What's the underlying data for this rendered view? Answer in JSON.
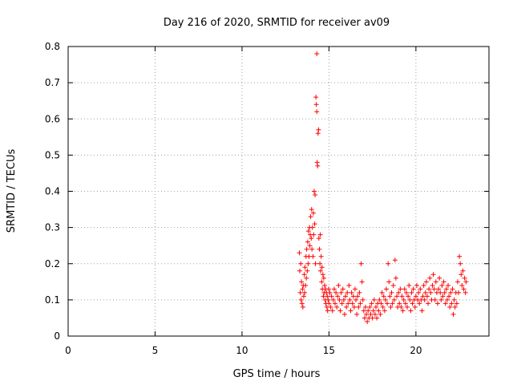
{
  "chart_data": {
    "type": "scatter",
    "title": "Day 216 of 2020, SRMTID for receiver av09",
    "xlabel": "GPS time / hours",
    "ylabel": "SRMTID / TECUs",
    "xlim": [
      0,
      24.2
    ],
    "ylim": [
      0,
      0.8
    ],
    "x_ticks": [
      0,
      5,
      10,
      15,
      20
    ],
    "y_ticks": [
      0,
      0.1,
      0.2,
      0.3,
      0.4,
      0.5,
      0.6,
      0.7,
      0.8
    ],
    "x_tick_labels": [
      "0",
      "5",
      "10",
      "15",
      "20"
    ],
    "y_tick_labels": [
      "0",
      "0.1",
      "0.2",
      "0.3",
      "0.4",
      "0.5",
      "0.6",
      "0.7",
      "0.8"
    ],
    "grid": true,
    "marker": "+",
    "colors": {
      "series": "#ff0000",
      "grid": "#a0a0a0",
      "axes": "#000000"
    },
    "series": [
      {
        "name": "SRMTID",
        "points": [
          [
            13.3,
            0.23
          ],
          [
            13.32,
            0.18
          ],
          [
            13.35,
            0.12
          ],
          [
            13.38,
            0.2
          ],
          [
            13.4,
            0.1
          ],
          [
            13.42,
            0.15
          ],
          [
            13.45,
            0.09
          ],
          [
            13.48,
            0.13
          ],
          [
            13.5,
            0.08
          ],
          [
            13.52,
            0.14
          ],
          [
            13.55,
            0.11
          ],
          [
            13.58,
            0.17
          ],
          [
            13.6,
            0.12
          ],
          [
            13.62,
            0.19
          ],
          [
            13.65,
            0.14
          ],
          [
            13.68,
            0.22
          ],
          [
            13.7,
            0.16
          ],
          [
            13.72,
            0.24
          ],
          [
            13.75,
            0.18
          ],
          [
            13.78,
            0.26
          ],
          [
            13.8,
            0.2
          ],
          [
            13.82,
            0.29
          ],
          [
            13.85,
            0.22
          ],
          [
            13.88,
            0.3
          ],
          [
            13.9,
            0.25
          ],
          [
            13.92,
            0.28
          ],
          [
            13.95,
            0.33
          ],
          [
            13.98,
            0.27
          ],
          [
            14.0,
            0.35
          ],
          [
            14.02,
            0.24
          ],
          [
            14.05,
            0.3
          ],
          [
            14.08,
            0.22
          ],
          [
            14.1,
            0.34
          ],
          [
            14.12,
            0.28
          ],
          [
            14.15,
            0.4
          ],
          [
            14.18,
            0.31
          ],
          [
            14.2,
            0.39
          ],
          [
            14.22,
            0.2
          ],
          [
            14.25,
            0.66
          ],
          [
            14.27,
            0.64
          ],
          [
            14.3,
            0.62
          ],
          [
            14.32,
            0.48
          ],
          [
            14.35,
            0.47
          ],
          [
            14.37,
            0.56
          ],
          [
            14.4,
            0.57
          ],
          [
            14.3,
            0.78
          ],
          [
            14.42,
            0.27
          ],
          [
            14.45,
            0.24
          ],
          [
            14.48,
            0.2
          ],
          [
            14.5,
            0.28
          ],
          [
            14.52,
            0.18
          ],
          [
            14.55,
            0.22
          ],
          [
            14.58,
            0.15
          ],
          [
            14.6,
            0.19
          ],
          [
            14.62,
            0.13
          ],
          [
            14.65,
            0.17
          ],
          [
            14.68,
            0.11
          ],
          [
            14.7,
            0.16
          ],
          [
            14.72,
            0.12
          ],
          [
            14.75,
            0.14
          ],
          [
            14.78,
            0.1
          ],
          [
            14.8,
            0.13
          ],
          [
            14.82,
            0.09
          ],
          [
            14.85,
            0.12
          ],
          [
            14.88,
            0.08
          ],
          [
            14.9,
            0.11
          ],
          [
            14.92,
            0.07
          ],
          [
            14.95,
            0.1
          ],
          [
            14.98,
            0.13
          ],
          [
            15.0,
            0.09
          ],
          [
            15.05,
            0.12
          ],
          [
            15.1,
            0.08
          ],
          [
            15.15,
            0.11
          ],
          [
            15.2,
            0.07
          ],
          [
            15.25,
            0.1
          ],
          [
            15.3,
            0.13
          ],
          [
            15.35,
            0.09
          ],
          [
            15.4,
            0.12
          ],
          [
            15.45,
            0.08
          ],
          [
            15.5,
            0.11
          ],
          [
            15.55,
            0.14
          ],
          [
            15.6,
            0.1
          ],
          [
            15.65,
            0.07
          ],
          [
            15.7,
            0.12
          ],
          [
            15.75,
            0.09
          ],
          [
            15.8,
            0.13
          ],
          [
            15.85,
            0.1
          ],
          [
            15.9,
            0.06
          ],
          [
            15.95,
            0.11
          ],
          [
            16.0,
            0.08
          ],
          [
            16.05,
            0.12
          ],
          [
            16.1,
            0.09
          ],
          [
            16.15,
            0.14
          ],
          [
            16.2,
            0.1
          ],
          [
            16.25,
            0.07
          ],
          [
            16.3,
            0.12
          ],
          [
            16.35,
            0.09
          ],
          [
            16.4,
            0.11
          ],
          [
            16.45,
            0.08
          ],
          [
            16.5,
            0.13
          ],
          [
            16.55,
            0.1
          ],
          [
            16.6,
            0.06
          ],
          [
            16.65,
            0.11
          ],
          [
            16.7,
            0.08
          ],
          [
            16.75,
            0.12
          ],
          [
            16.8,
            0.09
          ],
          [
            16.85,
            0.2
          ],
          [
            16.9,
            0.15
          ],
          [
            16.95,
            0.1
          ],
          [
            17.0,
            0.07
          ],
          [
            17.05,
            0.05
          ],
          [
            17.1,
            0.08
          ],
          [
            17.15,
            0.06
          ],
          [
            17.2,
            0.04
          ],
          [
            17.25,
            0.07
          ],
          [
            17.3,
            0.05
          ],
          [
            17.35,
            0.08
          ],
          [
            17.4,
            0.06
          ],
          [
            17.45,
            0.09
          ],
          [
            17.5,
            0.05
          ],
          [
            17.55,
            0.07
          ],
          [
            17.6,
            0.1
          ],
          [
            17.65,
            0.06
          ],
          [
            17.7,
            0.08
          ],
          [
            17.75,
            0.05
          ],
          [
            17.8,
            0.09
          ],
          [
            17.85,
            0.07
          ],
          [
            17.9,
            0.1
          ],
          [
            17.95,
            0.06
          ],
          [
            18.0,
            0.09
          ],
          [
            18.05,
            0.12
          ],
          [
            18.1,
            0.08
          ],
          [
            18.15,
            0.11
          ],
          [
            18.2,
            0.07
          ],
          [
            18.25,
            0.1
          ],
          [
            18.3,
            0.13
          ],
          [
            18.35,
            0.09
          ],
          [
            18.4,
            0.2
          ],
          [
            18.45,
            0.15
          ],
          [
            18.5,
            0.11
          ],
          [
            18.55,
            0.08
          ],
          [
            18.6,
            0.12
          ],
          [
            18.65,
            0.09
          ],
          [
            18.7,
            0.14
          ],
          [
            18.75,
            0.1
          ],
          [
            18.8,
            0.21
          ],
          [
            18.85,
            0.16
          ],
          [
            18.9,
            0.11
          ],
          [
            18.95,
            0.08
          ],
          [
            19.0,
            0.12
          ],
          [
            19.05,
            0.09
          ],
          [
            19.1,
            0.13
          ],
          [
            19.15,
            0.08
          ],
          [
            19.2,
            0.11
          ],
          [
            19.25,
            0.07
          ],
          [
            19.3,
            0.1
          ],
          [
            19.35,
            0.13
          ],
          [
            19.4,
            0.09
          ],
          [
            19.45,
            0.12
          ],
          [
            19.5,
            0.08
          ],
          [
            19.55,
            0.11
          ],
          [
            19.6,
            0.14
          ],
          [
            19.65,
            0.1
          ],
          [
            19.7,
            0.07
          ],
          [
            19.75,
            0.12
          ],
          [
            19.8,
            0.09
          ],
          [
            19.85,
            0.13
          ],
          [
            19.9,
            0.1
          ],
          [
            19.95,
            0.08
          ],
          [
            20.0,
            0.11
          ],
          [
            20.05,
            0.14
          ],
          [
            20.1,
            0.1
          ],
          [
            20.15,
            0.12
          ],
          [
            20.2,
            0.09
          ],
          [
            20.25,
            0.13
          ],
          [
            20.3,
            0.1
          ],
          [
            20.35,
            0.07
          ],
          [
            20.4,
            0.11
          ],
          [
            20.45,
            0.14
          ],
          [
            20.5,
            0.1
          ],
          [
            20.55,
            0.12
          ],
          [
            20.6,
            0.15
          ],
          [
            20.65,
            0.11
          ],
          [
            20.7,
            0.09
          ],
          [
            20.75,
            0.13
          ],
          [
            20.8,
            0.16
          ],
          [
            20.85,
            0.12
          ],
          [
            20.9,
            0.1
          ],
          [
            20.95,
            0.14
          ],
          [
            21.0,
            0.17
          ],
          [
            21.05,
            0.13
          ],
          [
            21.1,
            0.1
          ],
          [
            21.15,
            0.15
          ],
          [
            21.2,
            0.12
          ],
          [
            21.25,
            0.09
          ],
          [
            21.3,
            0.13
          ],
          [
            21.35,
            0.16
          ],
          [
            21.4,
            0.12
          ],
          [
            21.45,
            0.1
          ],
          [
            21.5,
            0.14
          ],
          [
            21.55,
            0.11
          ],
          [
            21.6,
            0.15
          ],
          [
            21.65,
            0.12
          ],
          [
            21.7,
            0.09
          ],
          [
            21.75,
            0.13
          ],
          [
            21.8,
            0.1
          ],
          [
            21.85,
            0.14
          ],
          [
            21.9,
            0.11
          ],
          [
            21.95,
            0.08
          ],
          [
            22.0,
            0.12
          ],
          [
            22.05,
            0.09
          ],
          [
            22.1,
            0.13
          ],
          [
            22.15,
            0.06
          ],
          [
            22.2,
            0.1
          ],
          [
            22.25,
            0.08
          ],
          [
            22.3,
            0.12
          ],
          [
            22.35,
            0.09
          ],
          [
            22.4,
            0.15
          ],
          [
            22.45,
            0.12
          ],
          [
            22.5,
            0.22
          ],
          [
            22.55,
            0.2
          ],
          [
            22.6,
            0.17
          ],
          [
            22.65,
            0.14
          ],
          [
            22.7,
            0.18
          ],
          [
            22.75,
            0.13
          ],
          [
            22.8,
            0.16
          ],
          [
            22.85,
            0.12
          ],
          [
            22.88,
            0.15
          ]
        ]
      }
    ]
  }
}
